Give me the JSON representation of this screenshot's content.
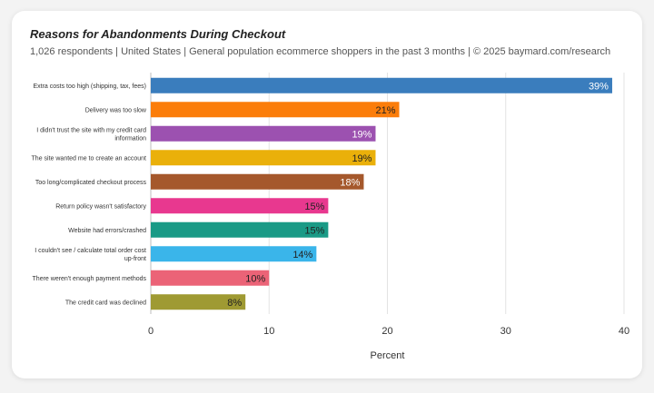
{
  "header": {
    "title": "Reasons for Abandonments During Checkout",
    "subtitle": "1,026 respondents  |  United States  |  General population ecommerce shoppers in the past 3 months | © 2025 baymard.com/research"
  },
  "chart_data": {
    "type": "bar",
    "orientation": "horizontal",
    "categories": [
      [
        "Extra costs too high (shipping, tax, fees)"
      ],
      [
        "Delivery was too slow"
      ],
      [
        "I didn't trust the site with my credit card",
        "information"
      ],
      [
        "The site wanted me to create an account"
      ],
      [
        "Too long/complicated checkout process"
      ],
      [
        "Return policy wasn't satisfactory"
      ],
      [
        "Website had errors/crashed"
      ],
      [
        "I couldn't see / calculate total order cost",
        "up-front"
      ],
      [
        "There weren't enough payment methods"
      ],
      [
        "The credit card was declined"
      ]
    ],
    "values": [
      39,
      21,
      19,
      19,
      18,
      15,
      15,
      14,
      10,
      8
    ],
    "data_labels": [
      "39%",
      "21%",
      "19%",
      "19%",
      "18%",
      "15%",
      "15%",
      "14%",
      "10%",
      "8%"
    ],
    "colors": [
      "#3a7dbd",
      "#fb7d0a",
      "#9c51b0",
      "#eab00a",
      "#a5582c",
      "#e8388f",
      "#1a9a86",
      "#3ab5ea",
      "#eb6377",
      "#9f9a33"
    ],
    "label_colors": [
      "#ffffff",
      "#222222",
      "#ffffff",
      "#222222",
      "#ffffff",
      "#222222",
      "#222222",
      "#222222",
      "#222222",
      "#222222"
    ],
    "xlabel": "Percent",
    "ylabel": "",
    "xlim": [
      0,
      40
    ],
    "xticks": [
      0,
      10,
      20,
      30,
      40
    ],
    "grid": true
  }
}
